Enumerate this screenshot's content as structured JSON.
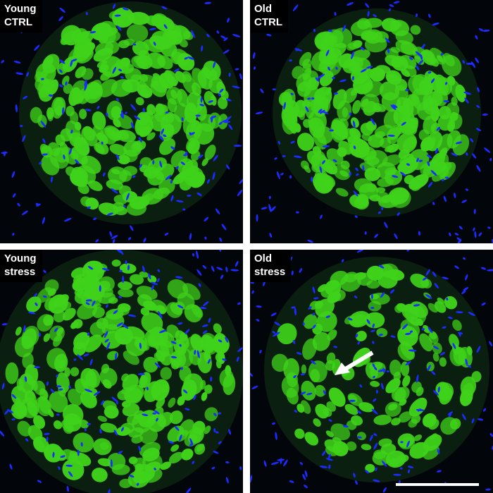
{
  "figure": {
    "panels": [
      {
        "label": "Young\nCTRL",
        "condition": "young control"
      },
      {
        "label": "Old\nCTRL",
        "condition": "old control"
      },
      {
        "label": "Young\nstress",
        "condition": "young stress"
      },
      {
        "label": "Old\nstress",
        "condition": "old stress"
      }
    ],
    "colors": {
      "fiber_stain": "#3fd21a",
      "nuclei_stain": "#1a2cff",
      "background": "#02060a"
    },
    "annotations": {
      "arrow": "white arrow pointing to degenerated region",
      "scale_bar": true
    }
  }
}
